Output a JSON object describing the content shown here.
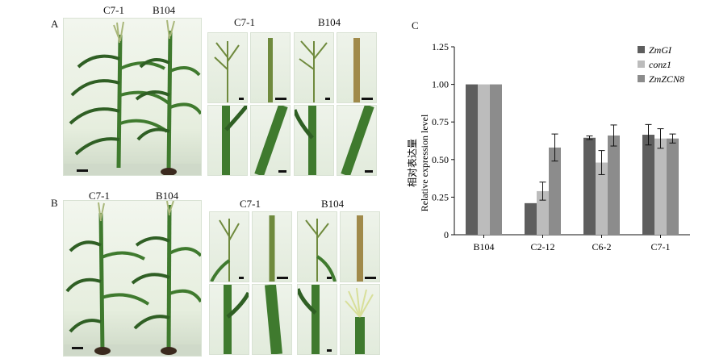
{
  "figure": {
    "panel_a": {
      "letter": "A",
      "plant_labels": [
        "C7-1",
        "B104"
      ],
      "detail_group_labels": [
        "C7-1",
        "B104"
      ]
    },
    "panel_b": {
      "letter": "B",
      "plant_labels": [
        "C7-1",
        "B104"
      ],
      "detail_group_labels": [
        "C7-1",
        "B104"
      ]
    },
    "panel_c": {
      "letter": "C"
    }
  },
  "colors": {
    "series_zmgi": "#5e5e5e",
    "series_conz1": "#bcbcbc",
    "series_zmzcn8": "#8c8c8c",
    "plant_green": "#3f7a2e",
    "leaf_dark": "#2f5f24",
    "tassel": "#a9b77a",
    "pot": "#3b2a1e"
  },
  "icons": [
    "maize-plant-photo",
    "tassel-closeup-photo",
    "stem-closeup-photo"
  ],
  "chart_data": {
    "type": "bar",
    "title": "",
    "ylabel_cn": "相对表达量",
    "ylabel": "Relative expression level",
    "xlabel": "",
    "categories": [
      "B104",
      "C2-12",
      "C6-2",
      "C7-1"
    ],
    "series": [
      {
        "name": "ZmGI",
        "values": [
          1.0,
          0.21,
          0.645,
          0.665
        ],
        "errors": [
          0.0,
          0.0,
          0.012,
          0.068
        ]
      },
      {
        "name": "conz1",
        "values": [
          1.0,
          0.29,
          0.48,
          0.64
        ],
        "errors": [
          0.0,
          0.06,
          0.08,
          0.065
        ]
      },
      {
        "name": "ZmZCN8",
        "values": [
          1.0,
          0.58,
          0.66,
          0.64
        ],
        "errors": [
          0.0,
          0.09,
          0.07,
          0.03
        ]
      }
    ],
    "ylim": [
      0,
      1.25
    ],
    "yticks": [
      "0",
      "0.25",
      "0.50",
      "0.75",
      "1.00",
      "1.25"
    ],
    "ytick_values": [
      0,
      0.25,
      0.5,
      0.75,
      1.0,
      1.25
    ],
    "legend_position": "top-right",
    "grid": false
  }
}
